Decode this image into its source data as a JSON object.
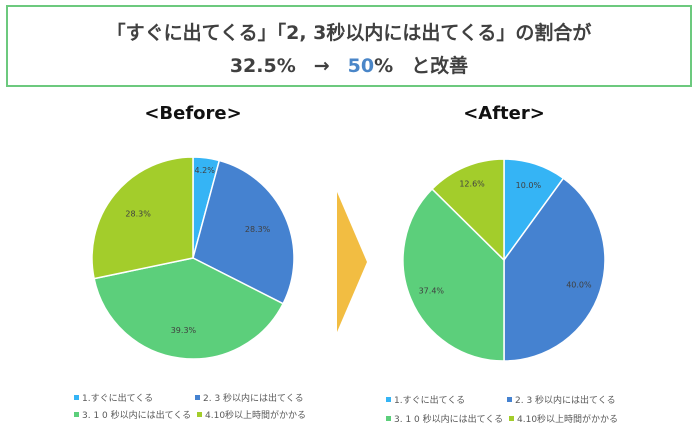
{
  "headline": {
    "line1": "「すぐに出てくる」「2, 3秒以内には出てくる」の割合が",
    "before_value": "32.5%",
    "arrow": "→",
    "after_value_number": "50",
    "after_value_unit": "%",
    "suffix": "と改善",
    "border_color": "#6cc97e",
    "accent_color": "#4a86c8"
  },
  "transition_arrow": {
    "icon": "chevron-right-arrow",
    "color": "#f2bd42"
  },
  "chart_data": [
    {
      "type": "pie",
      "title": "<Before>",
      "categories": [
        "1.すぐに出てくる",
        "2. 3 秒以内には出てくる",
        "3. 1 0 秒以内には出てくる",
        "4.10秒以上時間がかかる"
      ],
      "values": [
        4.2,
        28.3,
        39.3,
        28.3
      ],
      "labels": [
        "4.2%",
        "28.3%",
        "39.3%",
        "28.3%"
      ],
      "colors": [
        "#35b4f5",
        "#4582d0",
        "#5ccf7b",
        "#a3cd2b"
      ],
      "start_angle": "12 o'clock, clockwise",
      "legend_position": "bottom"
    },
    {
      "type": "pie",
      "title": "<After>",
      "categories": [
        "1.すぐに出てくる",
        "2. 3 秒以内には出てくる",
        "3. 1 0 秒以内には出てくる",
        "4.10秒以上時間がかかる"
      ],
      "values": [
        10.0,
        40.0,
        37.4,
        12.6
      ],
      "labels": [
        "10.0%",
        "40.0%",
        "37.4%",
        "12.6%"
      ],
      "colors": [
        "#35b4f5",
        "#4582d0",
        "#5ccf7b",
        "#a3cd2b"
      ],
      "start_angle": "12 o'clock, clockwise",
      "legend_position": "bottom"
    }
  ]
}
